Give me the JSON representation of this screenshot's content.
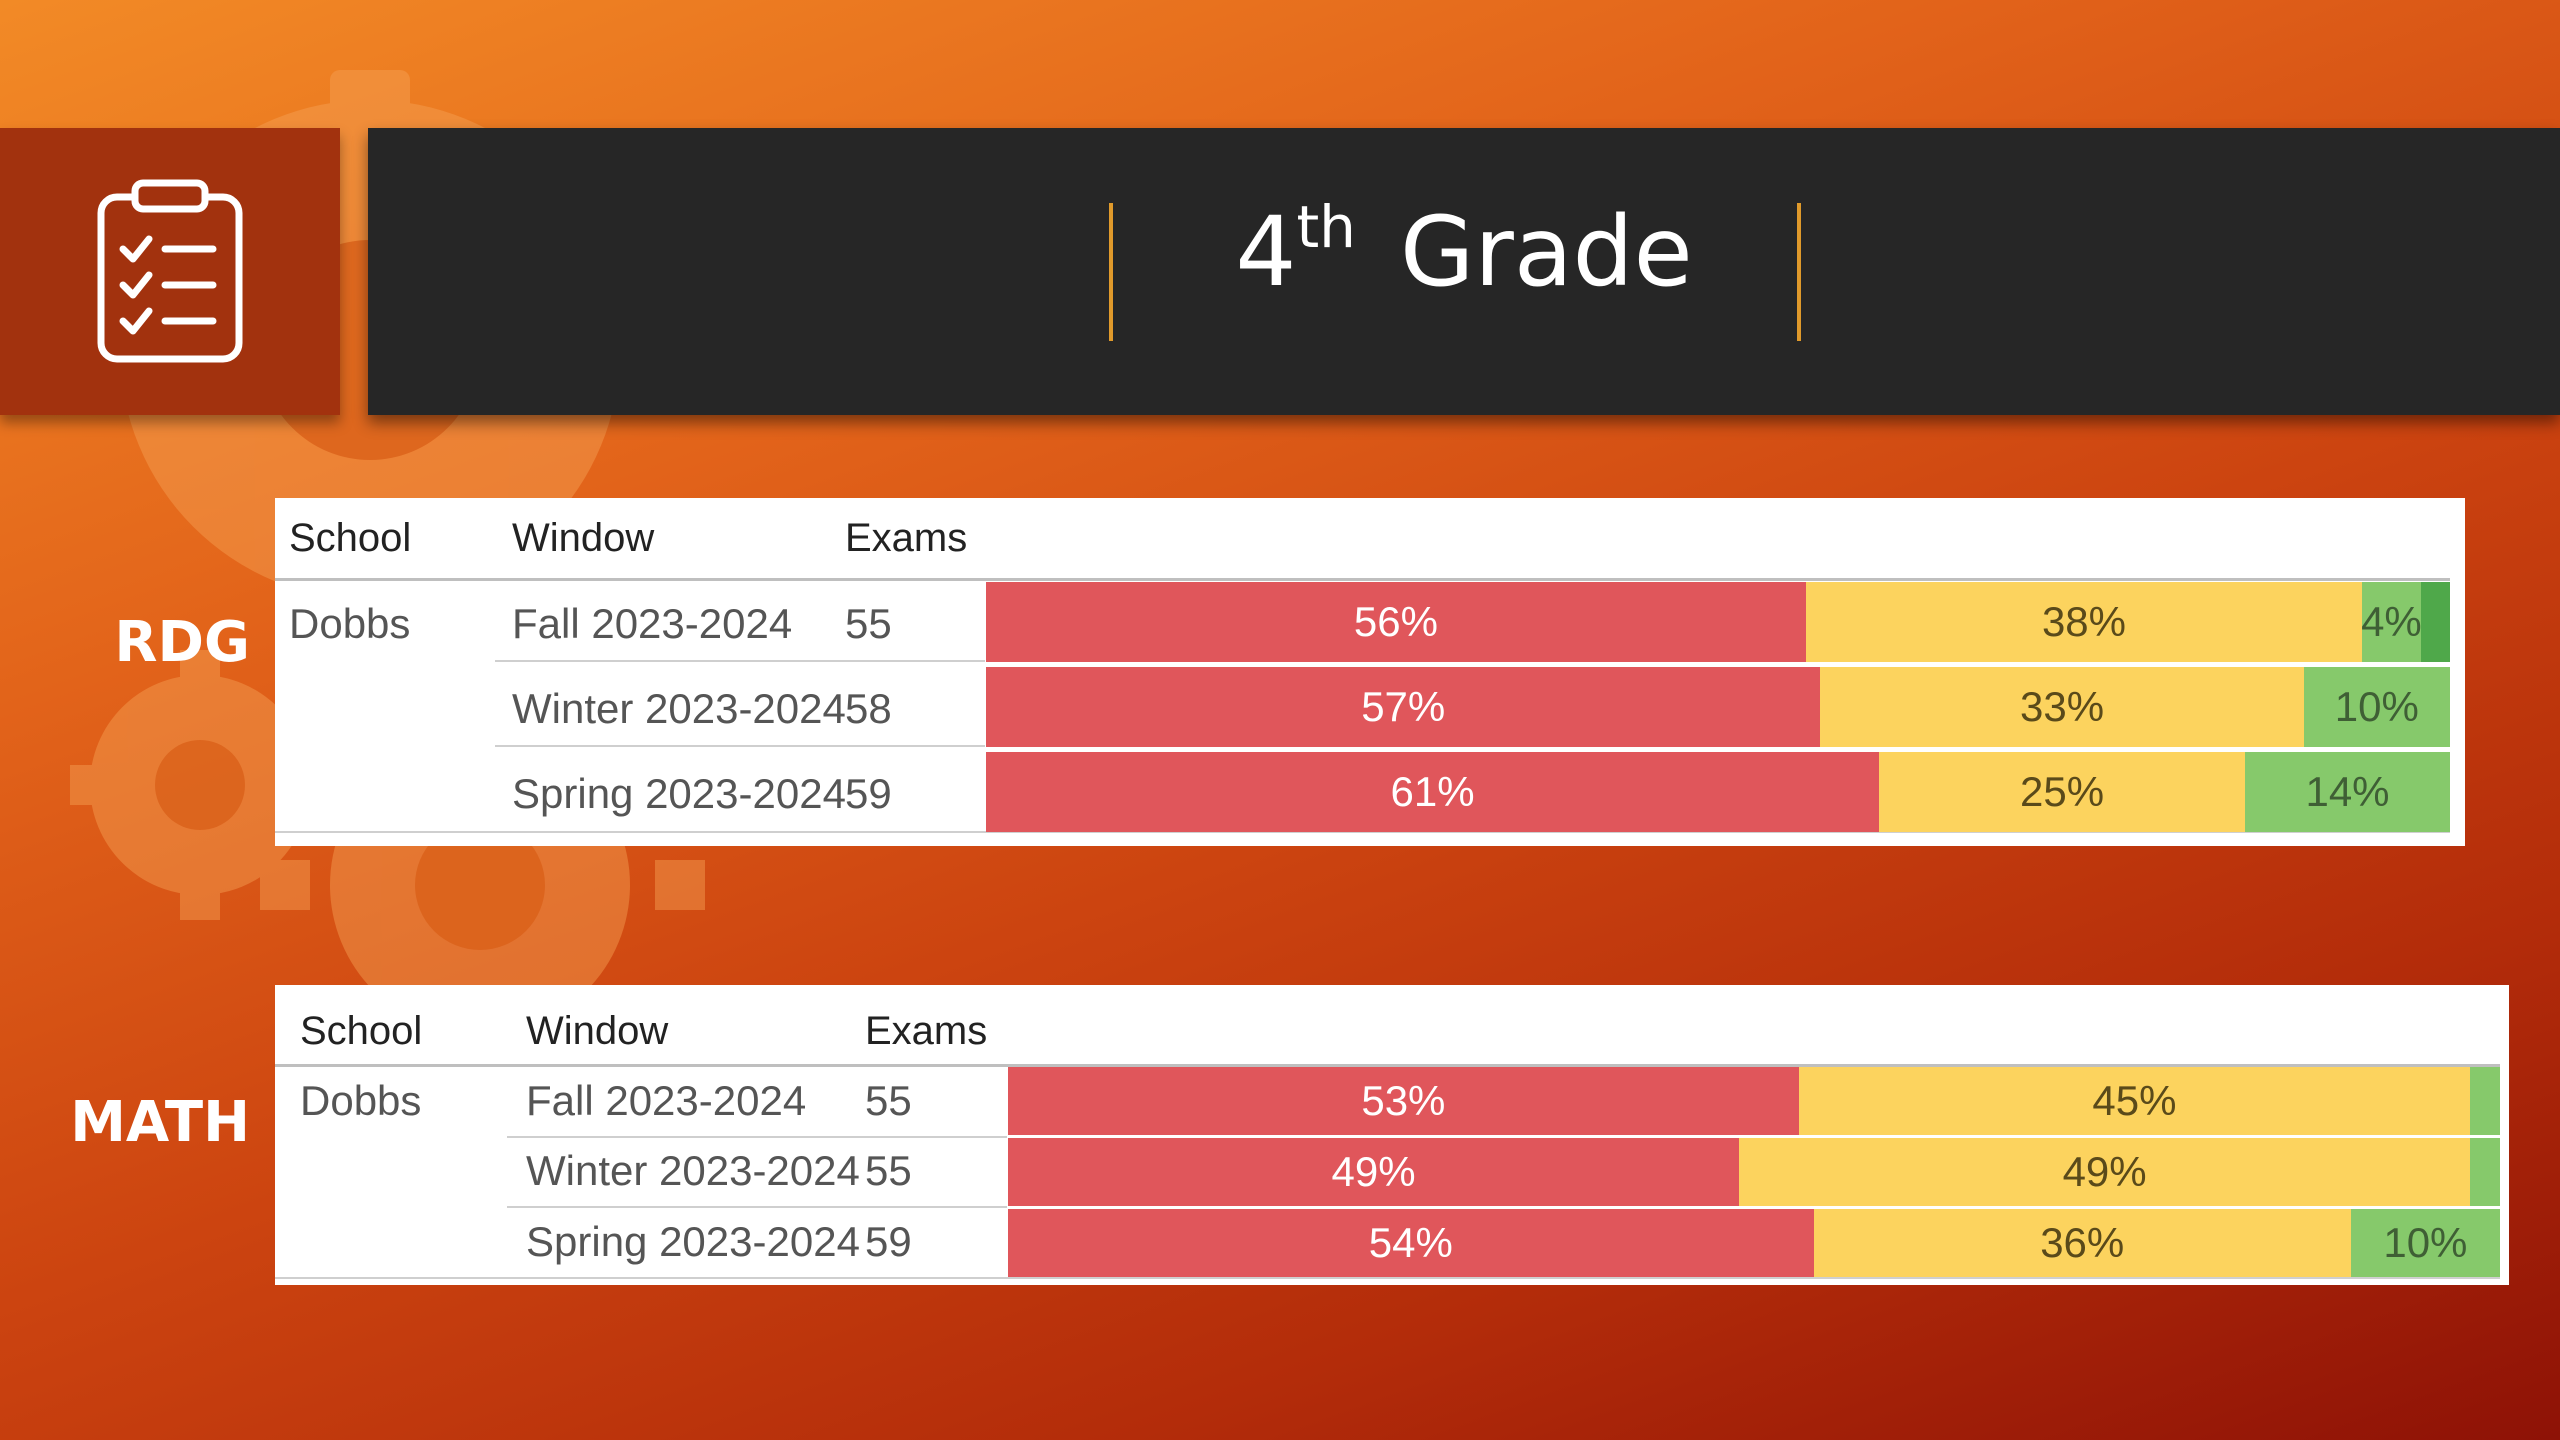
{
  "header": {
    "title_number": "4",
    "title_suffix": "th",
    "title_word": "Grade"
  },
  "icons": {
    "header_icon": "clipboard-checklist-icon"
  },
  "colors": {
    "red": "#e0565b",
    "yellow": "#fcd35e",
    "green": "#86c96b",
    "dark_green": "#4fa84a"
  },
  "chart_data": [
    {
      "type": "bar",
      "orientation": "horizontal-stacked-100",
      "subject": "RDG",
      "columns": [
        "School",
        "Window",
        "Exams"
      ],
      "school": "Dobbs",
      "rows": [
        {
          "window": "Fall 2023-2024",
          "exams": "55",
          "values": [
            56,
            38,
            4,
            2
          ],
          "labels": [
            "56%",
            "38%",
            "4%",
            ""
          ]
        },
        {
          "window": "Winter 2023-2024",
          "exams": "58",
          "values": [
            57,
            33,
            10
          ],
          "labels": [
            "57%",
            "33%",
            "10%"
          ]
        },
        {
          "window": "Spring 2023-2024",
          "exams": "59",
          "values": [
            61,
            25,
            14
          ],
          "labels": [
            "61%",
            "25%",
            "14%"
          ]
        }
      ]
    },
    {
      "type": "bar",
      "orientation": "horizontal-stacked-100",
      "subject": "MATH",
      "columns": [
        "School",
        "Window",
        "Exams"
      ],
      "school": "Dobbs",
      "rows": [
        {
          "window": "Fall 2023-2024",
          "exams": "55",
          "values": [
            53,
            45,
            2
          ],
          "labels": [
            "53%",
            "45%",
            ""
          ]
        },
        {
          "window": "Winter 2023-2024",
          "exams": "55",
          "values": [
            49,
            49,
            2
          ],
          "labels": [
            "49%",
            "49%",
            ""
          ]
        },
        {
          "window": "Spring 2023-2024",
          "exams": "59",
          "values": [
            54,
            36,
            10
          ],
          "labels": [
            "54%",
            "36%",
            "10%"
          ]
        }
      ]
    }
  ]
}
